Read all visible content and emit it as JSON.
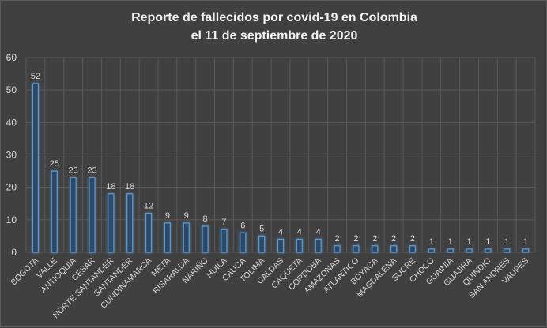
{
  "chart_data": {
    "type": "bar",
    "title_line1": "Reporte de fallecidos por covid-19 en Colombia",
    "title_line2": "el 11 de septiembre de 2020",
    "xlabel": "",
    "ylabel": "",
    "ylim": [
      0,
      60
    ],
    "yticks": [
      0,
      10,
      20,
      30,
      40,
      50,
      60
    ],
    "grid": true,
    "categories": [
      "BOGOTA",
      "VALLE",
      "ANTIOQUIA",
      "CESAR",
      "NORTE SANTANDER",
      "SANTANDER",
      "CUNDINAMARCA",
      "META",
      "RISARALDA",
      "NARIÑO",
      "HUILA",
      "CAUCA",
      "TOLIMA",
      "CALDAS",
      "CAQUETA",
      "CORDOBA",
      "AMAZONAS",
      "ATLANTICO",
      "BOYACA",
      "MAGDALENA",
      "SUCRE",
      "CHOCO",
      "GUAINIA",
      "GUAJIRA",
      "QUINDIO",
      "SAN ANDRES",
      "VAUPES"
    ],
    "values": [
      52,
      25,
      23,
      23,
      18,
      18,
      12,
      9,
      9,
      8,
      7,
      6,
      5,
      4,
      4,
      4,
      2,
      2,
      2,
      2,
      2,
      1,
      1,
      1,
      1,
      1,
      1
    ],
    "colors": {
      "bar_stroke": "#5b9bd5",
      "bar_fill": "#2e4a66",
      "background": "#404040",
      "grid": "#595959",
      "text": "#d9d9d9"
    }
  }
}
